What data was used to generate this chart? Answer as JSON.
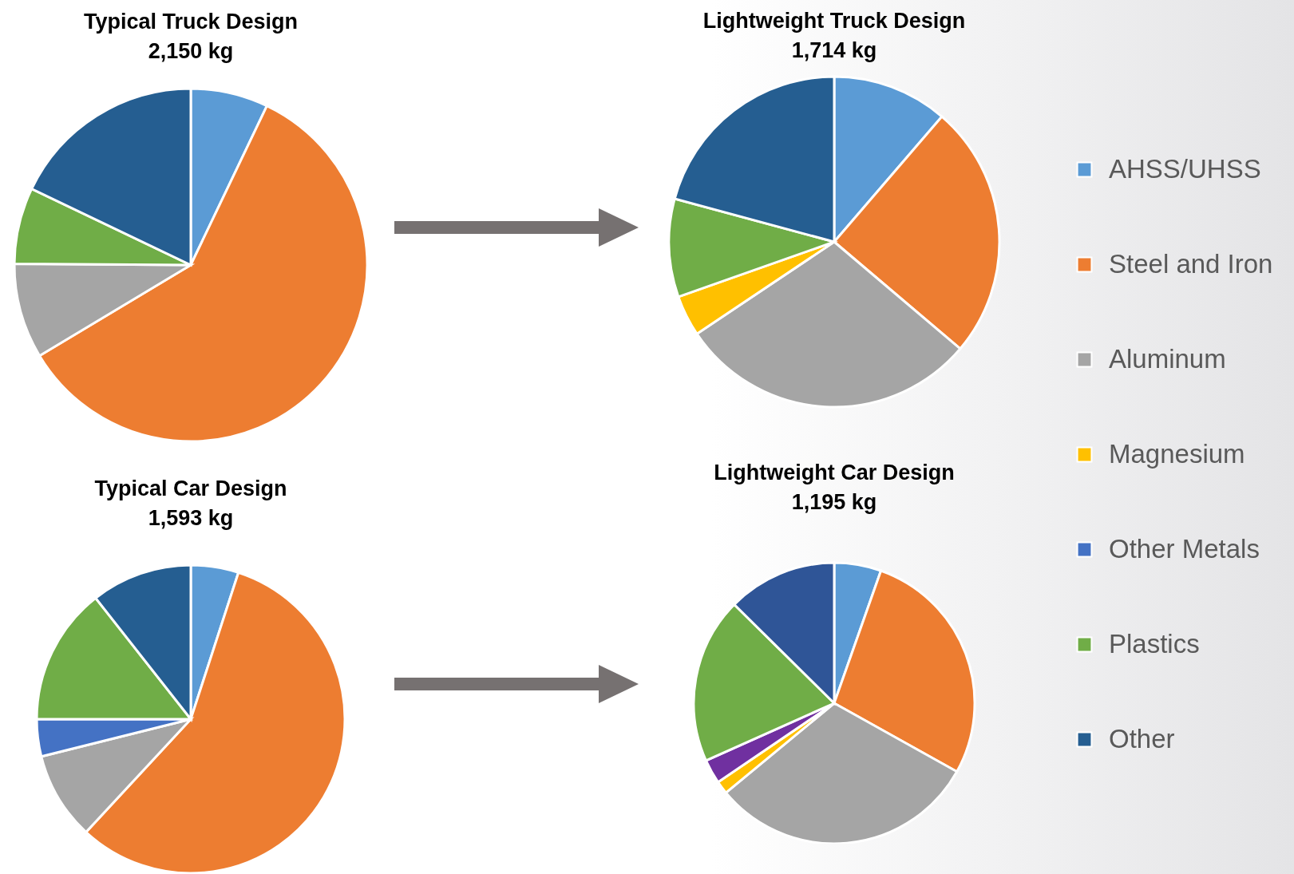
{
  "chart_data": [
    {
      "type": "pie",
      "title": "Typical Truck Design",
      "subtitle": "2,150 kg",
      "categories": [
        null,
        null,
        null,
        null,
        null,
        null,
        null
      ],
      "values": [
        7.1,
        59.3,
        8.7,
        null,
        null,
        7.0,
        17.9
      ],
      "colors": [
        "#5b9bd5",
        "#ed7d31",
        "#a5a5a5",
        "#ffc000",
        "#4472c4",
        "#70ad47",
        "#255e91"
      ]
    },
    {
      "type": "pie",
      "title": "Lightweight Truck Design",
      "subtitle": "1,714 kg",
      "legend": "right",
      "categories": [
        "AHSS/UHSS",
        "Steel and Iron",
        "Aluminum",
        "Magnesium",
        "Other Metals",
        "Plastics",
        "Other"
      ],
      "values": [
        11.3,
        24.9,
        29.4,
        4.0,
        null,
        9.6,
        20.8
      ],
      "colors": [
        "#5b9bd5",
        "#ed7d31",
        "#a5a5a5",
        "#ffc000",
        "#4472c4",
        "#70ad47",
        "#255e91"
      ]
    },
    {
      "type": "pie",
      "title": "Typical Car Design",
      "subtitle": "1,593 kg",
      "categories": [
        null,
        null,
        null,
        null,
        null,
        null,
        null
      ],
      "values": [
        5.0,
        56.9,
        9.2,
        null,
        3.9,
        14.4,
        10.6
      ],
      "colors": [
        "#5b9bd5",
        "#ed7d31",
        "#a5a5a5",
        "#ffc000",
        "#4472c4",
        "#70ad47",
        "#255e91"
      ]
    },
    {
      "type": "pie",
      "title": "Lightweight Car Design",
      "subtitle": "1,195 kg",
      "categories": [
        null,
        null,
        null,
        null,
        null,
        null,
        null
      ],
      "values": [
        5.4,
        27.7,
        30.9,
        1.5,
        2.8,
        19.1,
        12.6
      ],
      "colors": [
        "#5b9bd5",
        "#ed7d31",
        "#a5a5a5",
        "#ffc000",
        "#7030a0",
        "#70ad47",
        "#2f5597"
      ]
    }
  ]
}
